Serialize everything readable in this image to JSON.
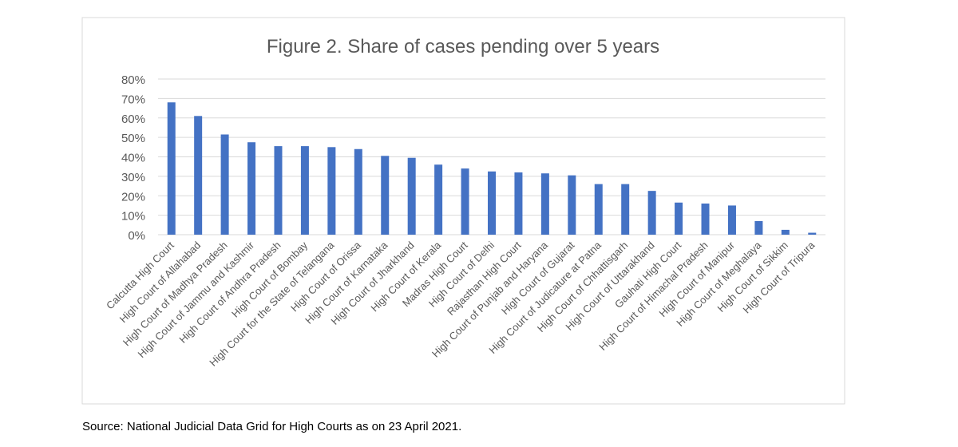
{
  "chart_data": {
    "type": "bar",
    "title": "Figure 2. Share of cases pending over 5 years",
    "xlabel": "",
    "ylabel": "",
    "ylim": [
      0,
      80
    ],
    "yticks": [
      "0%",
      "10%",
      "20%",
      "30%",
      "40%",
      "50%",
      "60%",
      "70%",
      "80%"
    ],
    "grid": true,
    "bar_color": "#4472C4",
    "categories": [
      "Calcutta High Court",
      "High Court of Allahabad",
      "High Court of Madhya Pradesh",
      "High Court of Jammu and Kashmir",
      "High Court of Andhra Pradesh",
      "High Court of Bombay",
      "High Court for the State of Telangana",
      "High Court of Orissa",
      "High Court of Karnataka",
      "High Court of Jharkhand",
      "High Court of Kerala",
      "Madras High Court",
      "High Court of Delhi",
      "Rajasthan High Court",
      "High Court of Punjab and Haryana",
      "High Court of Gujarat",
      "High Court of Judicature at Patna",
      "High Court of Chhattisgarh",
      "High Court of Uttarakhand",
      "Gauhati High Court",
      "High Court of Himachal Pradesh",
      "High Court of Manipur",
      "High Court of Meghalaya",
      "High Court of Sikkim",
      "High Court of Tripura"
    ],
    "values": [
      68,
      61,
      51.5,
      47.5,
      45.5,
      45.5,
      45,
      44,
      40.5,
      39.5,
      36,
      34,
      32.5,
      32,
      31.5,
      30.5,
      26,
      26,
      22.5,
      16.5,
      16,
      15,
      7,
      2.5,
      1
    ]
  },
  "source": "Source: National Judicial Data Grid for High Courts as on 23 April 2021."
}
